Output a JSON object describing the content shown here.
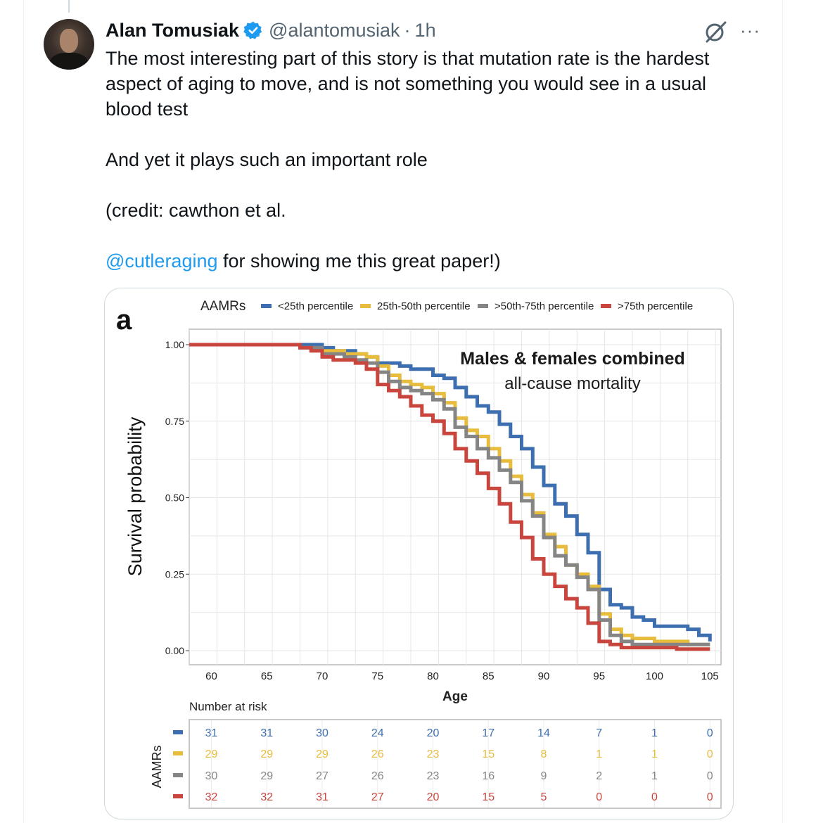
{
  "tweet": {
    "author_name": "Alan Tomusiak",
    "handle": "@alantomusiak",
    "separator": "·",
    "time": "1h",
    "lines": [
      "The most interesting part of this story is that mutation rate is the hardest",
      "aspect of aging to move, and is not something you would see in a usual",
      "blood test",
      "And yet it plays such an important role",
      "(credit: cawthon et al."
    ],
    "mention": "@cutleraging",
    "mention_suffix": " for showing me this great paper!)",
    "more_label": "···"
  },
  "colors": {
    "accent": "#1d9bf0",
    "blue": "#3d6fb0",
    "yellow": "#e8bc3c",
    "gray": "#858585",
    "red": "#c9463f"
  },
  "icons": [
    "verified-badge-icon",
    "grok-icon",
    "more-icon"
  ],
  "chart_data": {
    "type": "line",
    "panel_label": "a",
    "title": "Males & females combined",
    "subtitle": "all-cause mortality",
    "xlabel": "Age",
    "ylabel": "Survival probability",
    "legend_title": "AAMRs",
    "legend_position": "top",
    "xlim": [
      58,
      106
    ],
    "ylim": [
      0,
      1
    ],
    "x_ticks": [
      60,
      65,
      70,
      75,
      80,
      85,
      90,
      95,
      100,
      105
    ],
    "y_ticks": [
      "0.00",
      "0.25",
      "0.50",
      "0.75",
      "1.00"
    ],
    "grid": true,
    "series": [
      {
        "name": "<25th percentile",
        "color": "#3d6fb0",
        "x": [
          58,
          68,
          70,
          71,
          73,
          74,
          75,
          77,
          78,
          80,
          81,
          82,
          83,
          84,
          85,
          86,
          87,
          88,
          89,
          90,
          91,
          92,
          93,
          94,
          95,
          96,
          97,
          98,
          99,
          100,
          101,
          102,
          103,
          104,
          105
        ],
        "y": [
          1.0,
          1.0,
          0.99,
          0.98,
          0.97,
          0.96,
          0.94,
          0.93,
          0.92,
          0.9,
          0.89,
          0.86,
          0.83,
          0.8,
          0.78,
          0.74,
          0.7,
          0.66,
          0.6,
          0.54,
          0.48,
          0.44,
          0.38,
          0.32,
          0.2,
          0.15,
          0.14,
          0.11,
          0.1,
          0.08,
          0.08,
          0.08,
          0.07,
          0.05,
          0.03
        ]
      },
      {
        "name": "25th-50th percentile",
        "color": "#e8bc3c",
        "x": [
          58,
          66,
          68,
          70,
          72,
          74,
          75,
          76,
          77,
          78,
          79,
          80,
          81,
          82,
          83,
          84,
          85,
          86,
          87,
          88,
          89,
          90,
          91,
          92,
          93,
          94,
          95,
          96,
          97,
          98,
          100,
          103,
          105
        ],
        "y": [
          1.0,
          1.0,
          0.99,
          0.98,
          0.97,
          0.96,
          0.93,
          0.9,
          0.88,
          0.87,
          0.86,
          0.84,
          0.81,
          0.76,
          0.72,
          0.7,
          0.66,
          0.62,
          0.57,
          0.51,
          0.45,
          0.38,
          0.34,
          0.28,
          0.25,
          0.21,
          0.12,
          0.07,
          0.05,
          0.04,
          0.03,
          0.02,
          0.02
        ]
      },
      {
        "name": ">50th-75th percentile",
        "color": "#858585",
        "x": [
          58,
          66,
          68,
          70,
          72,
          73,
          74,
          75,
          76,
          77,
          78,
          79,
          80,
          81,
          82,
          83,
          84,
          85,
          86,
          87,
          88,
          89,
          90,
          91,
          92,
          93,
          94,
          95,
          96,
          97,
          98,
          100,
          102,
          105
        ],
        "y": [
          1.0,
          1.0,
          0.99,
          0.97,
          0.96,
          0.95,
          0.94,
          0.91,
          0.88,
          0.86,
          0.85,
          0.84,
          0.82,
          0.79,
          0.73,
          0.7,
          0.66,
          0.63,
          0.59,
          0.55,
          0.49,
          0.44,
          0.37,
          0.31,
          0.28,
          0.24,
          0.2,
          0.1,
          0.05,
          0.03,
          0.02,
          0.02,
          0.02,
          0.02
        ]
      },
      {
        "name": ">75th percentile",
        "color": "#c9463f",
        "x": [
          58,
          65,
          68,
          69,
          70,
          71,
          73,
          74,
          75,
          76,
          77,
          78,
          79,
          80,
          81,
          82,
          83,
          84,
          85,
          86,
          87,
          88,
          89,
          90,
          91,
          92,
          93,
          94,
          95,
          96,
          97,
          98,
          100,
          102,
          105
        ],
        "y": [
          1.0,
          1.0,
          0.99,
          0.98,
          0.96,
          0.95,
          0.94,
          0.92,
          0.87,
          0.85,
          0.83,
          0.8,
          0.77,
          0.75,
          0.71,
          0.66,
          0.62,
          0.58,
          0.53,
          0.48,
          0.42,
          0.37,
          0.3,
          0.25,
          0.21,
          0.17,
          0.14,
          0.09,
          0.03,
          0.02,
          0.01,
          0.01,
          0.01,
          0.005,
          0.005
        ]
      }
    ],
    "risk_table": {
      "title": "Number at risk",
      "ylabel": "AAMRs",
      "ages": [
        60,
        65,
        70,
        75,
        80,
        85,
        90,
        95,
        100,
        105
      ],
      "rows": [
        {
          "color": "#3d6fb0",
          "values": [
            "31",
            "31",
            "30",
            "24",
            "20",
            "17",
            "14",
            "7",
            "1",
            "0"
          ]
        },
        {
          "color": "#e8bc3c",
          "values": [
            "29",
            "29",
            "29",
            "26",
            "23",
            "15",
            "8",
            "1",
            "1",
            "0"
          ]
        },
        {
          "color": "#858585",
          "values": [
            "30",
            "29",
            "27",
            "26",
            "23",
            "16",
            "9",
            "2",
            "1",
            "0"
          ]
        },
        {
          "color": "#c9463f",
          "values": [
            "32",
            "32",
            "31",
            "27",
            "20",
            "15",
            "5",
            "0",
            "0",
            "0"
          ]
        }
      ]
    }
  }
}
